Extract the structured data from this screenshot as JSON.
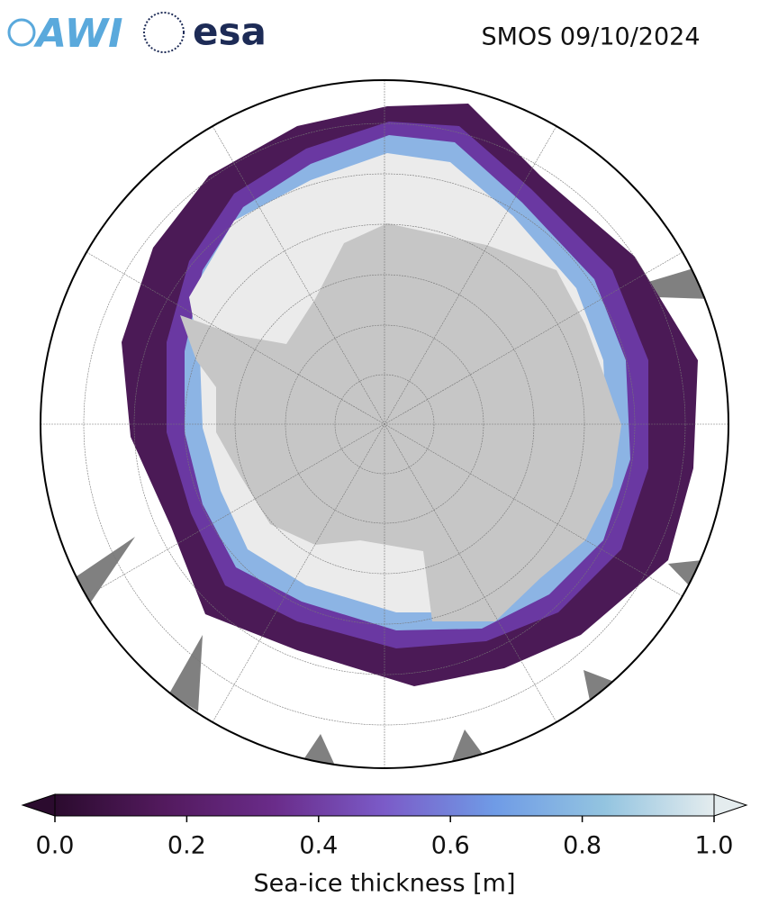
{
  "header": {
    "logos": [
      "AWI",
      "esa"
    ],
    "title": "SMOS 09/10/2024"
  },
  "colorbar": {
    "label": "Sea-ice thickness [m]",
    "lim": [
      0,
      1
    ],
    "colors": [
      "#2b0b2e",
      "#531a5e",
      "#6a2c8a",
      "#7b5bc8",
      "#6f9be6",
      "#93c4e0",
      "#e4ecee"
    ],
    "ticks": [
      {
        "value": 0,
        "label": "0.0"
      },
      {
        "value": 0.2,
        "label": "0.2"
      },
      {
        "value": 0.4,
        "label": "0.4"
      },
      {
        "value": 0.6,
        "label": "0.6"
      },
      {
        "value": 0.8,
        "label": "0.8"
      },
      {
        "value": 1,
        "label": "1.0"
      }
    ]
  }
}
